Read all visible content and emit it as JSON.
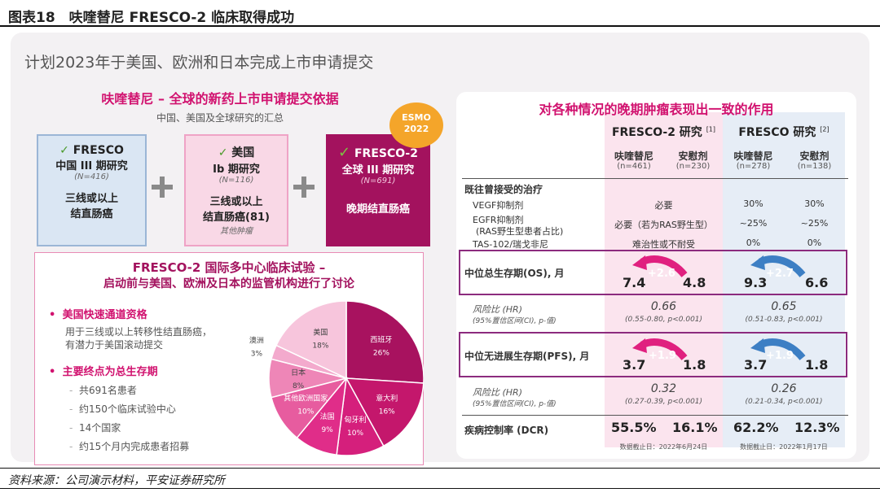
{
  "header": {
    "title": "图表18　呋喹替尼 FRESCO-2 临床取得成功"
  },
  "subtitle": "计划2023年于美国、欧洲和日本完成上市申请提交",
  "left": {
    "title": "呋喹替尼 – 全球的新药上市申请提交依据",
    "subtitle": "中国、美国及全球研究的汇总",
    "cards": [
      {
        "check": "✓",
        "l1": "FRESCO",
        "l2": "中国 III 期研究",
        "n": "(N=416)",
        "d1": "三线或以上",
        "d2": "结直肠癌",
        "d3": ""
      },
      {
        "check": "✓",
        "l1": "美国",
        "l2": "Ib 期研究",
        "n": "(N=116)",
        "d1": "三线或以上",
        "d2": "结直肠癌(81)",
        "d3": "其他肿瘤"
      },
      {
        "check": "✓",
        "l1": "FRESCO-2",
        "l2": "全球 III 期研究",
        "n": "(N=691)",
        "d1": "晚期结直肠癌",
        "d2": "",
        "d3": ""
      }
    ],
    "esmo": "ESMO 2022"
  },
  "fresco2": {
    "title1": "FRESCO-2 国际多中心临床试验 –",
    "title2": "启动前与美国、欧洲及日本的监管机构进行了讨论",
    "b1": "美国快速通道资格",
    "b1d1": "用于三线或以上转移性结直肠癌，",
    "b1d2": "有潜力于美国滚动提交",
    "b2": "主要终点为总生存期",
    "items": [
      "共691名患者",
      "约150个临床试验中心",
      "14个国家",
      "约15个月内完成患者招募"
    ]
  },
  "chart_data": {
    "type": "pie",
    "slices": [
      {
        "label": "西班牙",
        "value": 26,
        "color": "#a8125f"
      },
      {
        "label": "意大利",
        "value": 16,
        "color": "#c4176c"
      },
      {
        "label": "匈牙利",
        "value": 10,
        "color": "#d51f7c"
      },
      {
        "label": "法国",
        "value": 9,
        "color": "#e02d89"
      },
      {
        "label": "其他欧洲国家",
        "value": 10,
        "color": "#e75c9f"
      },
      {
        "label": "日本",
        "value": 8,
        "color": "#ee86b7"
      },
      {
        "label": "澳洲",
        "value": 3,
        "color": "#f3aacd"
      },
      {
        "label": "美国",
        "value": 18,
        "color": "#f7c5dc"
      }
    ]
  },
  "right": {
    "title": "对各种情况的晚期肿瘤表现出一致的作用",
    "fresco2_hdr": "FRESCO-2 研究",
    "fresco2_ref": "[1]",
    "fresco_hdr": "FRESCO 研究",
    "fresco_ref": "[2]",
    "cols": [
      {
        "name": "呋喹替尼",
        "n": "(n=461)"
      },
      {
        "name": "安慰剂",
        "n": "(n=230)"
      },
      {
        "name": "呋喹替尼",
        "n": "(n=278)"
      },
      {
        "name": "安慰剂",
        "n": "(n=138)"
      }
    ],
    "prior": "既往曾接受的治疗",
    "rows": [
      {
        "label": "VEGF抑制剂",
        "f2": "必要",
        "f1a": "30%",
        "f1b": "30%"
      },
      {
        "label": "EGFR抑制剂",
        "label2": "(RAS野生型患者占比)",
        "f2": "必要（若为RAS野生型）",
        "f1a": "~25%",
        "f1b": "~25%"
      },
      {
        "label": "TAS-102/瑞戈非尼",
        "f2": "难治性或不耐受",
        "f1a": "0%",
        "f1b": "0%"
      }
    ],
    "os": {
      "label": "中位总生存期(OS), 月",
      "a": "7.4",
      "b": "4.8",
      "d1": "+2.6",
      "c": "9.3",
      "d": "6.6",
      "d2": "+2.7"
    },
    "hr1": {
      "label": "风险比 (HR)",
      "label2": "(95%置信区间(CI), p-值)",
      "v1": "0.66",
      "ci1": "(0.55-0.80, p<0.001)",
      "v2": "0.65",
      "ci2": "(0.51-0.83, p<0.001)"
    },
    "pfs": {
      "label": "中位无进展生存期(PFS), 月",
      "a": "3.7",
      "b": "1.8",
      "d1": "+1.9",
      "c": "3.7",
      "d": "1.8",
      "d2": "+1.9"
    },
    "hr2": {
      "label": "风险比 (HR)",
      "label2": "(95%置信区间(CI), p-值)",
      "v1": "0.32",
      "ci1": "(0.27-0.39, p<0.001)",
      "v2": "0.26",
      "ci2": "(0.21-0.34, p<0.001)"
    },
    "dcr": {
      "label": "疾病控制率 (DCR)",
      "a": "55.5%",
      "b": "16.1%",
      "c": "62.2%",
      "d": "12.3%"
    },
    "cut1": "数据截止日：2022年6月24日",
    "cut2": "数据截止日：2022年1月17日"
  },
  "footer": "资料来源：公司演示材料，平安证券研究所"
}
